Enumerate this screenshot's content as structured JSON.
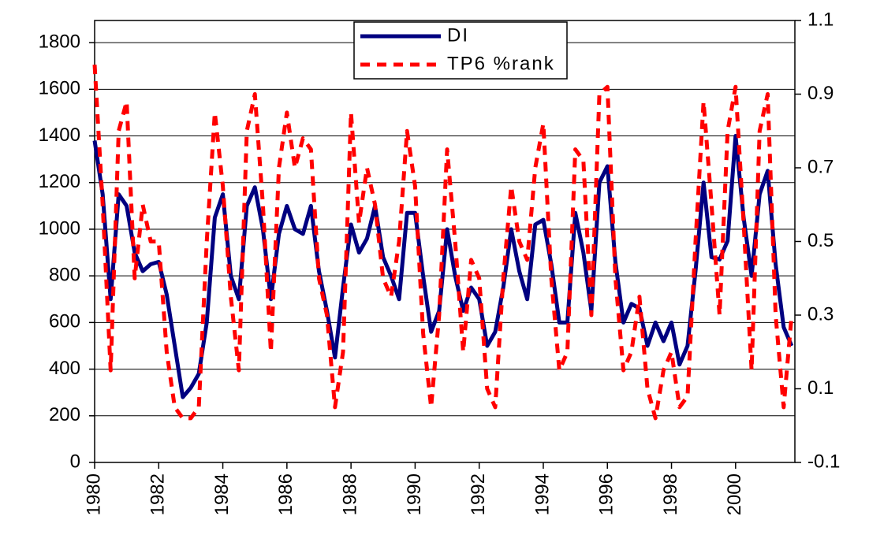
{
  "chart_data": {
    "type": "line",
    "x": [
      1980,
      1980.25,
      1980.5,
      1980.75,
      1981,
      1981.25,
      1981.5,
      1981.75,
      1982,
      1982.25,
      1982.5,
      1982.75,
      1983,
      1983.25,
      1983.5,
      1983.75,
      1984,
      1984.25,
      1984.5,
      1984.75,
      1985,
      1985.25,
      1985.5,
      1985.75,
      1986,
      1986.25,
      1986.5,
      1986.75,
      1987,
      1987.25,
      1987.5,
      1987.75,
      1988,
      1988.25,
      1988.5,
      1988.75,
      1989,
      1989.25,
      1989.5,
      1989.75,
      1990,
      1990.25,
      1990.5,
      1990.75,
      1991,
      1991.25,
      1991.5,
      1991.75,
      1992,
      1992.25,
      1992.5,
      1992.75,
      1993,
      1993.25,
      1993.5,
      1993.75,
      1994,
      1994.25,
      1994.5,
      1994.75,
      1995,
      1995.25,
      1995.5,
      1995.75,
      1996,
      1996.25,
      1996.5,
      1996.75,
      1997,
      1997.25,
      1997.5,
      1997.75,
      1998,
      1998.25,
      1998.5,
      1998.75,
      1999,
      1999.25,
      1999.5,
      1999.75,
      2000,
      2000.25,
      2000.5,
      2000.75,
      2001,
      2001.25,
      2001.5,
      2001.75
    ],
    "series": [
      {
        "name": "DI",
        "color": "#000080",
        "dashed": false,
        "values": [
          1380,
          1150,
          700,
          1150,
          1100,
          900,
          820,
          850,
          860,
          720,
          500,
          280,
          320,
          380,
          600,
          1050,
          1150,
          800,
          700,
          1100,
          1180,
          1000,
          700,
          980,
          1100,
          1000,
          980,
          1100,
          820,
          650,
          450,
          750,
          1020,
          900,
          960,
          1100,
          880,
          800,
          700,
          1070,
          1070,
          800,
          560,
          650,
          1000,
          800,
          650,
          750,
          700,
          500,
          560,
          750,
          1000,
          820,
          700,
          1020,
          1040,
          850,
          600,
          600,
          1070,
          900,
          650,
          1200,
          1270,
          860,
          600,
          680,
          660,
          500,
          600,
          520,
          600,
          420,
          500,
          820,
          1200,
          880,
          870,
          950,
          1400,
          1050,
          800,
          1150,
          1250,
          850,
          580,
          500
        ]
      },
      {
        "name": "TP6 %rank",
        "color": "#ff0000",
        "dashed": true,
        "axis": "y2",
        "values": [
          0.98,
          0.6,
          0.15,
          0.8,
          0.88,
          0.4,
          0.6,
          0.5,
          0.5,
          0.2,
          0.05,
          0.02,
          0.02,
          0.05,
          0.5,
          0.85,
          0.65,
          0.35,
          0.15,
          0.8,
          0.9,
          0.6,
          0.2,
          0.7,
          0.85,
          0.7,
          0.78,
          0.75,
          0.4,
          0.3,
          0.05,
          0.2,
          0.85,
          0.55,
          0.7,
          0.6,
          0.4,
          0.35,
          0.5,
          0.8,
          0.65,
          0.25,
          0.05,
          0.3,
          0.75,
          0.5,
          0.2,
          0.45,
          0.4,
          0.1,
          0.05,
          0.4,
          0.65,
          0.5,
          0.45,
          0.7,
          0.82,
          0.4,
          0.15,
          0.2,
          0.75,
          0.72,
          0.3,
          0.9,
          0.92,
          0.4,
          0.15,
          0.2,
          0.35,
          0.1,
          0.02,
          0.15,
          0.2,
          0.05,
          0.08,
          0.5,
          0.88,
          0.6,
          0.3,
          0.8,
          0.92,
          0.55,
          0.15,
          0.8,
          0.9,
          0.3,
          0.05,
          0.3
        ]
      }
    ],
    "xlim": [
      1980,
      2001.85
    ],
    "xticks": [
      1980,
      1982,
      1984,
      1986,
      1988,
      1990,
      1992,
      1994,
      1996,
      1998,
      2000
    ],
    "ylim": [
      0,
      1895
    ],
    "yticks": [
      0,
      200,
      400,
      600,
      800,
      1000,
      1200,
      1400,
      1600,
      1800
    ],
    "y2lim": [
      -0.1,
      1.1
    ],
    "y2ticks": [
      -0.1,
      0.1,
      0.3,
      0.5,
      0.7,
      0.9,
      1.1
    ],
    "grid": true,
    "legend": "top-center"
  }
}
